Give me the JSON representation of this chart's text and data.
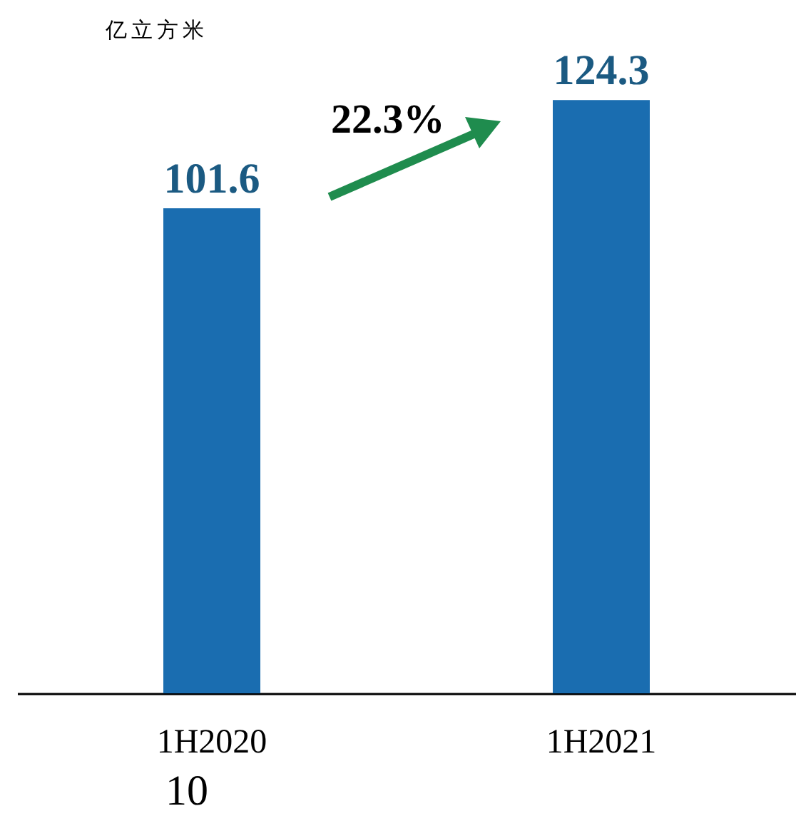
{
  "chart_data": {
    "type": "bar",
    "ylabel": "亿立方米",
    "categories": [
      "1H2020",
      "1H2021"
    ],
    "values": [
      101.6,
      124.3
    ],
    "color": "#1a6db0",
    "data_labels": true,
    "annotations": [
      "22.3%",
      "10"
    ]
  }
}
